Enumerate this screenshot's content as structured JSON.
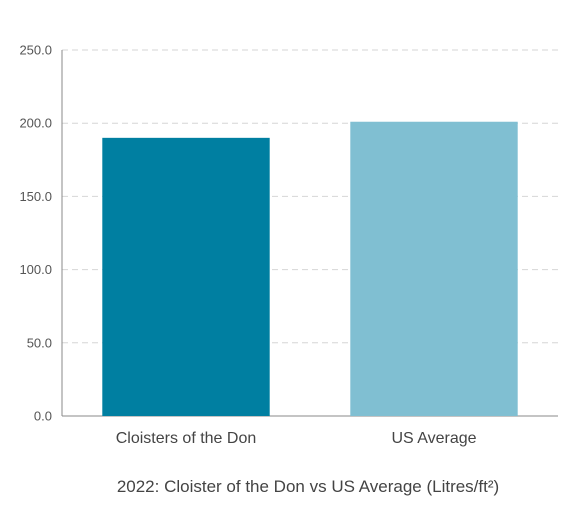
{
  "chart_data": {
    "type": "bar",
    "categories": [
      "Cloisters of the Don",
      "US Average"
    ],
    "values": [
      190,
      201
    ],
    "colors": [
      "#007fa1",
      "#80bfd2"
    ],
    "title": "2022: Cloister of the Don vs US Average (Litres/ft²)",
    "xlabel": "",
    "ylabel": "",
    "ylim": [
      0,
      250
    ],
    "yticks": [
      0,
      50,
      100,
      150,
      200,
      250
    ],
    "ytick_labels": [
      "0.0",
      "50.0",
      "100.0",
      "150.0",
      "200.0",
      "250.0"
    ],
    "grid": true,
    "legend": "none"
  }
}
